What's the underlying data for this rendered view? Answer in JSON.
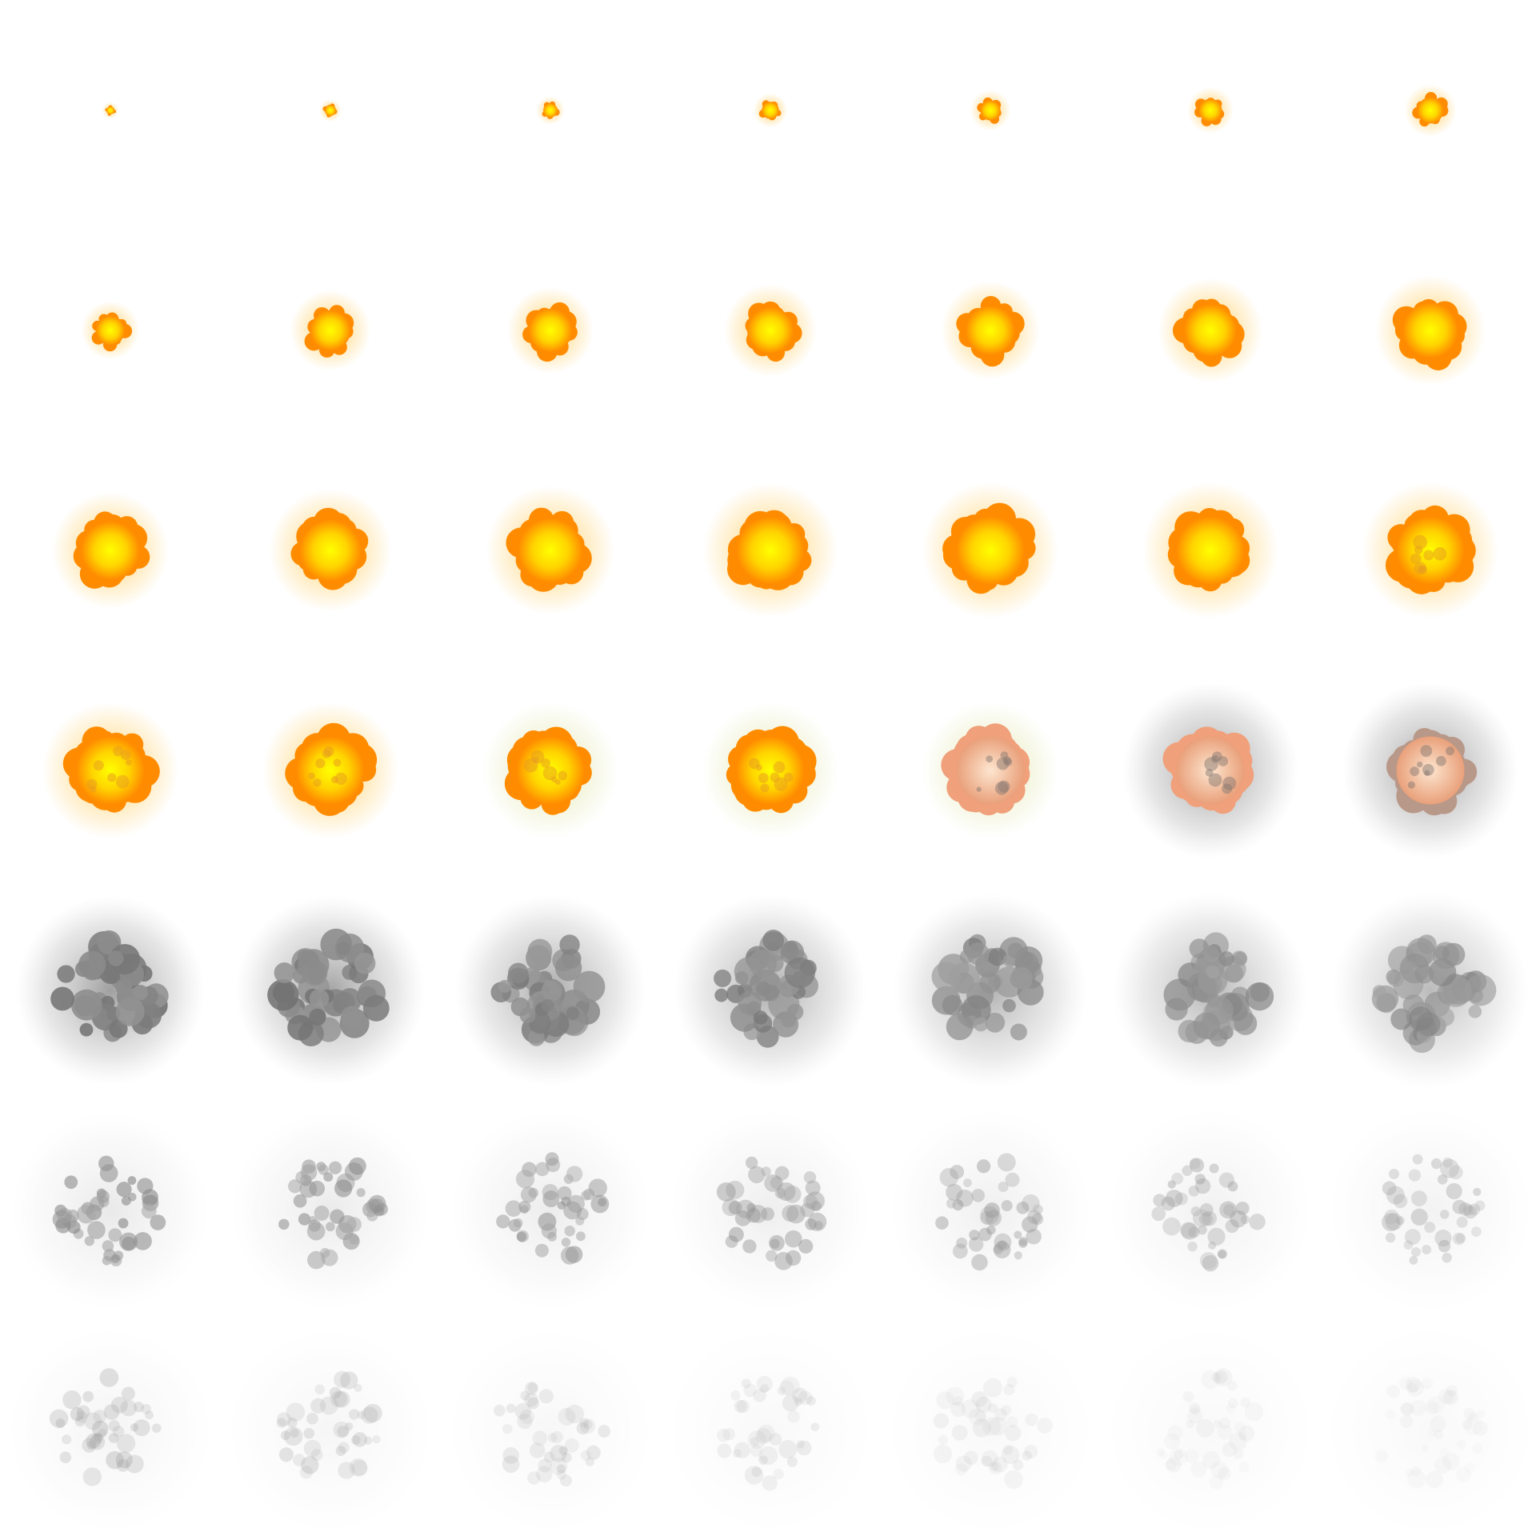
{
  "sprite_sheet": {
    "name": "explosion",
    "rows": 7,
    "columns": 7,
    "frame_count": 49,
    "background": "#ffffff",
    "palette": {
      "core_yellow": "#ffff00",
      "fire_orange": "#ff8c00",
      "deep_orange": "#f26a00",
      "peach": "#f7c9a8",
      "tan_smoke": "#c8a89a",
      "dark_smoke": "#6e6e6e",
      "light_smoke": "#b4b4b4"
    },
    "phases": [
      {
        "name": "ignition",
        "frames": "1-7"
      },
      {
        "name": "fireball",
        "frames": "8-21"
      },
      {
        "name": "burnout",
        "frames": "22-28"
      },
      {
        "name": "dark-smoke",
        "frames": "29-35"
      },
      {
        "name": "dispersing-smoke",
        "frames": "36-42"
      },
      {
        "name": "fade",
        "frames": "43-49"
      }
    ]
  }
}
